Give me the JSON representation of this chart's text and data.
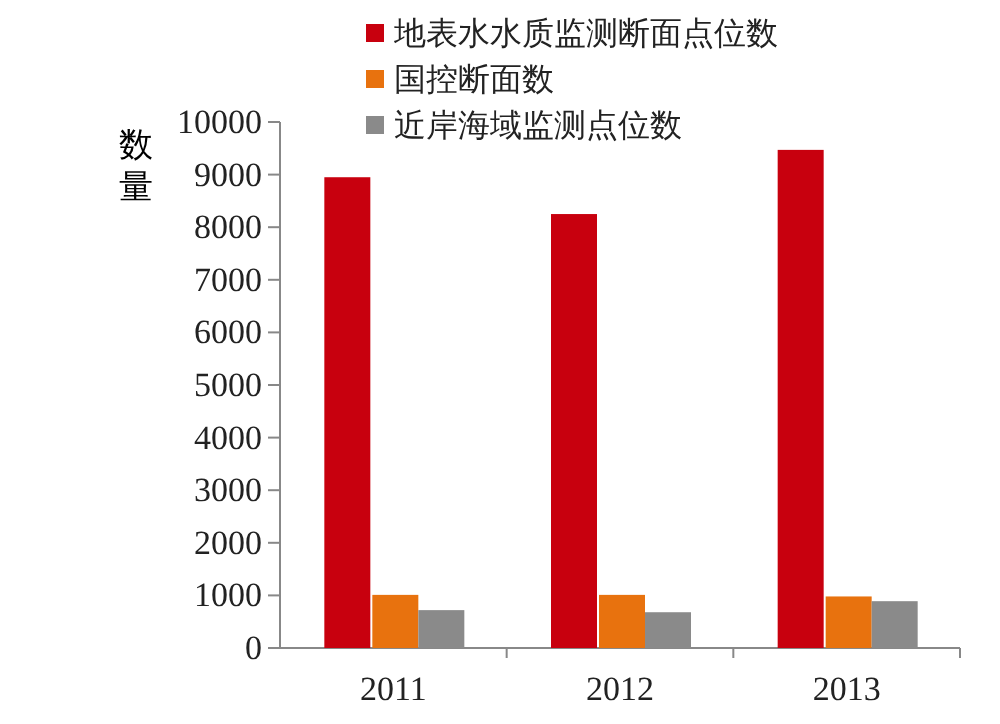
{
  "chart_data": {
    "type": "bar",
    "ylabel": "数量",
    "categories": [
      "2011",
      "2012",
      "2013"
    ],
    "series": [
      {
        "name": "地表水水质监测断面点位数",
        "color": "#c8000e",
        "values": [
          8950,
          8250,
          9470
        ]
      },
      {
        "name": "国控断面数",
        "color": "#e8720e",
        "values": [
          1010,
          1010,
          980
        ]
      },
      {
        "name": "近岸海域监测点位数",
        "color": "#8a8a8a",
        "values": [
          720,
          680,
          890
        ]
      }
    ],
    "ylim": [
      0,
      10000
    ],
    "yticks": [
      0,
      1000,
      2000,
      3000,
      4000,
      5000,
      6000,
      7000,
      8000,
      9000,
      10000
    ],
    "grid": false,
    "legend": "top"
  }
}
